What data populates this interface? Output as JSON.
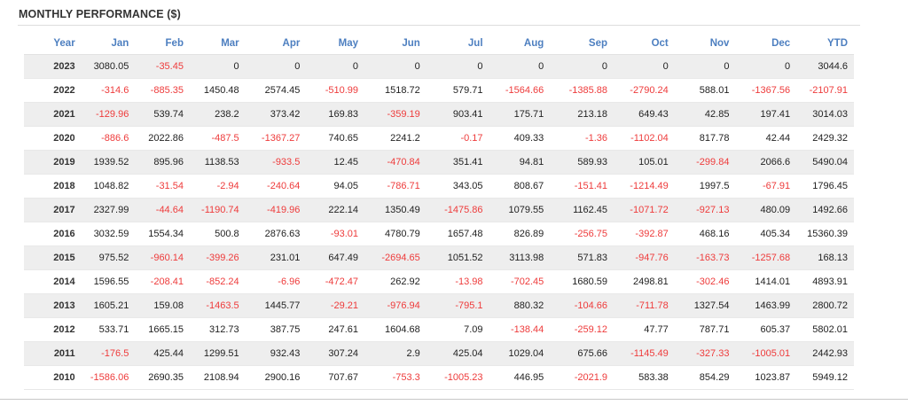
{
  "title": "MONTHLY PERFORMANCE ($)",
  "columns": [
    "Year",
    "Jan",
    "Feb",
    "Mar",
    "Apr",
    "May",
    "Jun",
    "Jul",
    "Aug",
    "Sep",
    "Oct",
    "Nov",
    "Dec",
    "YTD"
  ],
  "rows": [
    [
      "2023",
      "3080.05",
      "-35.45",
      "0",
      "0",
      "0",
      "0",
      "0",
      "0",
      "0",
      "0",
      "0",
      "0",
      "3044.6"
    ],
    [
      "2022",
      "-314.6",
      "-885.35",
      "1450.48",
      "2574.45",
      "-510.99",
      "1518.72",
      "579.71",
      "-1564.66",
      "-1385.88",
      "-2790.24",
      "588.01",
      "-1367.56",
      "-2107.91"
    ],
    [
      "2021",
      "-129.96",
      "539.74",
      "238.2",
      "373.42",
      "169.83",
      "-359.19",
      "903.41",
      "175.71",
      "213.18",
      "649.43",
      "42.85",
      "197.41",
      "3014.03"
    ],
    [
      "2020",
      "-886.6",
      "2022.86",
      "-487.5",
      "-1367.27",
      "740.65",
      "2241.2",
      "-0.17",
      "409.33",
      "-1.36",
      "-1102.04",
      "817.78",
      "42.44",
      "2429.32"
    ],
    [
      "2019",
      "1939.52",
      "895.96",
      "1138.53",
      "-933.5",
      "12.45",
      "-470.84",
      "351.41",
      "94.81",
      "589.93",
      "105.01",
      "-299.84",
      "2066.6",
      "5490.04"
    ],
    [
      "2018",
      "1048.82",
      "-31.54",
      "-2.94",
      "-240.64",
      "94.05",
      "-786.71",
      "343.05",
      "808.67",
      "-151.41",
      "-1214.49",
      "1997.5",
      "-67.91",
      "1796.45"
    ],
    [
      "2017",
      "2327.99",
      "-44.64",
      "-1190.74",
      "-419.96",
      "222.14",
      "1350.49",
      "-1475.86",
      "1079.55",
      "1162.45",
      "-1071.72",
      "-927.13",
      "480.09",
      "1492.66"
    ],
    [
      "2016",
      "3032.59",
      "1554.34",
      "500.8",
      "2876.63",
      "-93.01",
      "4780.79",
      "1657.48",
      "826.89",
      "-256.75",
      "-392.87",
      "468.16",
      "405.34",
      "15360.39"
    ],
    [
      "2015",
      "975.52",
      "-960.14",
      "-399.26",
      "231.01",
      "647.49",
      "-2694.65",
      "1051.52",
      "3113.98",
      "571.83",
      "-947.76",
      "-163.73",
      "-1257.68",
      "168.13"
    ],
    [
      "2014",
      "1596.55",
      "-208.41",
      "-852.24",
      "-6.96",
      "-472.47",
      "262.92",
      "-13.98",
      "-702.45",
      "1680.59",
      "2498.81",
      "-302.46",
      "1414.01",
      "4893.91"
    ],
    [
      "2013",
      "1605.21",
      "159.08",
      "-1463.5",
      "1445.77",
      "-29.21",
      "-976.94",
      "-795.1",
      "880.32",
      "-104.66",
      "-711.78",
      "1327.54",
      "1463.99",
      "2800.72"
    ],
    [
      "2012",
      "533.71",
      "1665.15",
      "312.73",
      "387.75",
      "247.61",
      "1604.68",
      "7.09",
      "-138.44",
      "-259.12",
      "47.77",
      "787.71",
      "605.37",
      "5802.01"
    ],
    [
      "2011",
      "-176.5",
      "425.44",
      "1299.51",
      "932.43",
      "307.24",
      "2.9",
      "425.04",
      "1029.04",
      "675.66",
      "-1145.49",
      "-327.33",
      "-1005.01",
      "2442.93"
    ],
    [
      "2010",
      "-1586.06",
      "2690.35",
      "2108.94",
      "2900.16",
      "707.67",
      "-753.3",
      "-1005.23",
      "446.95",
      "-2021.9",
      "583.38",
      "854.29",
      "1023.87",
      "5949.12"
    ]
  ],
  "colors": {
    "header_text": "#4d7fc0",
    "negative": "#ee3b3b",
    "positive": "#222222",
    "stripe": "#eeeeee"
  }
}
